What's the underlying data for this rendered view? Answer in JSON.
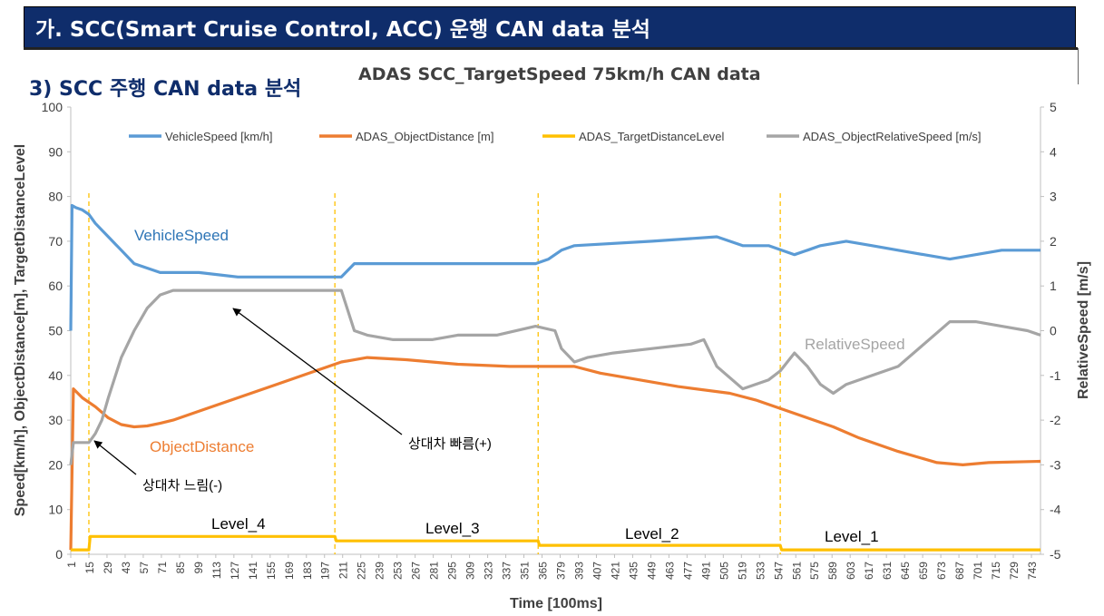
{
  "banner": {
    "title": "가. SCC(Smart Cruise Control, ACC) 운행 CAN data 분석"
  },
  "section": {
    "title": "3) SCC 주행 CAN data 분석"
  },
  "colors": {
    "vehicle": "#5b9bd5",
    "distance": "#ed7d31",
    "level": "#ffc000",
    "relative": "#a5a5a5",
    "banner": "#0f2d6b"
  },
  "chart_data": {
    "type": "line",
    "title": "ADAS SCC_TargetSpeed 75km/h CAN data",
    "xlabel": "Time [100ms]",
    "ylabel": "Speed[km/h], ObjectDistance[m], TargetDistanceLevel",
    "y2label": "RelativeSpeed [m/s]",
    "xlim": [
      1,
      750
    ],
    "ylim": [
      0,
      100
    ],
    "y2lim": [
      -5,
      5
    ],
    "y_ticks": [
      "0",
      "10",
      "20",
      "30",
      "40",
      "50",
      "60",
      "70",
      "80",
      "90",
      "100"
    ],
    "y2_ticks": [
      "-5",
      "-4",
      "-3",
      "-2",
      "-1",
      "0",
      "1",
      "2",
      "3",
      "4",
      "5"
    ],
    "x_ticks": [
      "1",
      "15",
      "29",
      "43",
      "57",
      "71",
      "85",
      "99",
      "113",
      "127",
      "141",
      "155",
      "169",
      "183",
      "197",
      "211",
      "225",
      "239",
      "253",
      "267",
      "281",
      "295",
      "309",
      "323",
      "337",
      "351",
      "365",
      "379",
      "393",
      "407",
      "421",
      "435",
      "449",
      "463",
      "477",
      "491",
      "505",
      "519",
      "533",
      "547",
      "561",
      "575",
      "589",
      "603",
      "617",
      "631",
      "645",
      "659",
      "673",
      "687",
      "701",
      "715",
      "729",
      "743"
    ],
    "legend": [
      "VehicleSpeed [km/h]",
      "ADAS_ObjectDistance [m]",
      "ADAS_TargetDistanceLevel",
      "ADAS_ObjectRelativeSpeed [m/s]"
    ],
    "level_boundaries": [
      15,
      205,
      362,
      549
    ],
    "series": [
      {
        "name": "VehicleSpeed [km/h]",
        "axis": "left",
        "x": [
          1,
          2,
          5,
          10,
          15,
          20,
          30,
          40,
          50,
          60,
          70,
          100,
          130,
          150,
          200,
          210,
          220,
          250,
          300,
          360,
          370,
          380,
          390,
          450,
          500,
          510,
          520,
          540,
          550,
          560,
          570,
          580,
          600,
          620,
          640,
          660,
          680,
          700,
          720,
          750
        ],
        "values": [
          50,
          78,
          77.5,
          77,
          76,
          74,
          71,
          68,
          65,
          64,
          63,
          63,
          62,
          62,
          62,
          62,
          65,
          65,
          65,
          65,
          66,
          68,
          69,
          70,
          71,
          70,
          69,
          69,
          68,
          67,
          68,
          69,
          70,
          69,
          68,
          67,
          66,
          67,
          68,
          68
        ]
      },
      {
        "name": "ADAS_ObjectDistance [m]",
        "axis": "left",
        "x": [
          1,
          3,
          10,
          20,
          30,
          40,
          50,
          60,
          70,
          80,
          100,
          130,
          160,
          190,
          210,
          230,
          260,
          300,
          340,
          370,
          390,
          410,
          440,
          470,
          510,
          530,
          550,
          570,
          590,
          610,
          640,
          670,
          690,
          710,
          750
        ],
        "values": [
          1,
          37,
          35,
          33,
          30.5,
          29,
          28.5,
          28.7,
          29.3,
          30,
          32,
          35,
          38,
          41,
          43,
          44,
          43.5,
          42.5,
          42,
          42,
          42,
          40.5,
          39,
          37.5,
          36,
          34.5,
          32.5,
          30.5,
          28.5,
          26,
          23,
          20.5,
          20,
          20.5,
          20.8
        ]
      },
      {
        "name": "ADAS_TargetDistanceLevel",
        "axis": "left",
        "x": [
          1,
          15,
          16,
          205,
          206,
          362,
          363,
          549,
          550,
          750
        ],
        "values": [
          1,
          1,
          4,
          4,
          3,
          3,
          2,
          2,
          1,
          1
        ]
      },
      {
        "name": "ADAS_ObjectRelativeSpeed [m/s]",
        "axis": "right",
        "x": [
          1,
          3,
          10,
          15,
          20,
          25,
          30,
          40,
          50,
          60,
          70,
          80,
          90,
          100,
          150,
          200,
          210,
          220,
          230,
          250,
          280,
          300,
          330,
          360,
          375,
          380,
          390,
          400,
          420,
          450,
          480,
          490,
          500,
          520,
          540,
          549,
          560,
          570,
          580,
          590,
          600,
          620,
          640,
          660,
          680,
          700,
          720,
          740,
          750
        ],
        "values": [
          -3,
          -2.5,
          -2.5,
          -2.5,
          -2.3,
          -2,
          -1.5,
          -0.6,
          0,
          0.5,
          0.8,
          0.9,
          0.9,
          0.9,
          0.9,
          0.9,
          0.9,
          0,
          -0.1,
          -0.2,
          -0.2,
          -0.1,
          -0.1,
          0.1,
          0,
          -0.4,
          -0.7,
          -0.6,
          -0.5,
          -0.4,
          -0.3,
          -0.2,
          -0.8,
          -1.3,
          -1.1,
          -0.9,
          -0.5,
          -0.8,
          -1.2,
          -1.4,
          -1.2,
          -1.0,
          -0.8,
          -0.3,
          0.2,
          0.2,
          0.1,
          0,
          -0.1
        ]
      }
    ],
    "annotations": [
      {
        "text": "VehicleSpeed",
        "color": "#2e75b6"
      },
      {
        "text": "ObjectDistance",
        "color": "#ed7d31"
      },
      {
        "text": "RelativeSpeed",
        "color": "#a5a5a5"
      },
      {
        "text": "Level_4",
        "color": "#000000"
      },
      {
        "text": "Level_3",
        "color": "#000000"
      },
      {
        "text": "Level_2",
        "color": "#000000"
      },
      {
        "text": "Level_1",
        "color": "#000000"
      },
      {
        "text": "상대차 빠름(+)",
        "color": "#000000"
      },
      {
        "text": "상대차 느림(-)",
        "color": "#000000"
      }
    ]
  }
}
